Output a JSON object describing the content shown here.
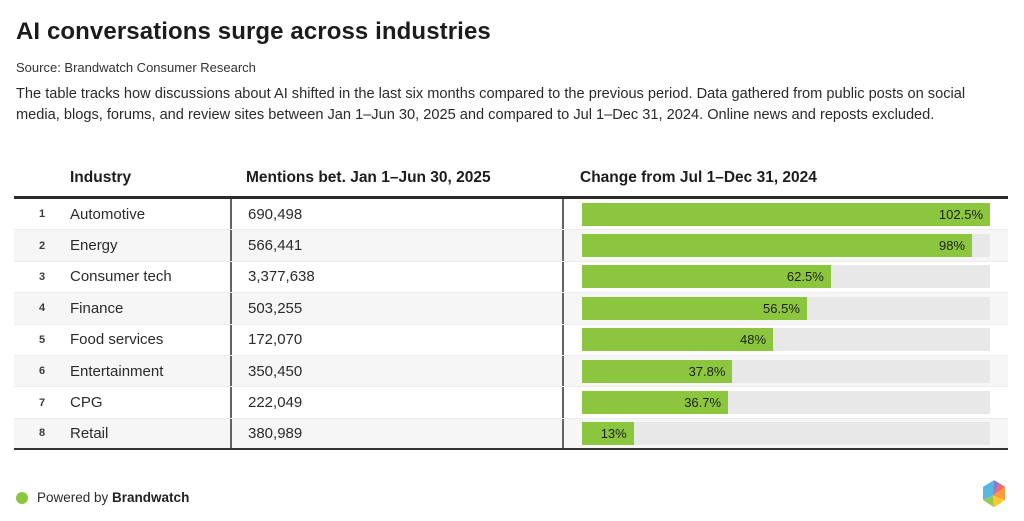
{
  "page": {
    "title": "AI conversations surge across industries",
    "source_line": "Source: Brandwatch Consumer Research",
    "description": "The table tracks how discussions about AI shifted in the last six months compared to the previous period. Data gathered from public posts on social media, blogs, forums, and review sites between Jan 1–Jun 30, 2025 and compared to Jul 1–Dec 31, 2024. Online news and reposts excluded."
  },
  "table": {
    "headers": {
      "industry": "Industry",
      "mentions": "Mentions bet. Jan 1–Jun 30, 2025",
      "change": "Change from Jul 1–Dec 31, 2024"
    },
    "rows": [
      {
        "rank": "1",
        "industry": "Automotive",
        "mentions": "690,498",
        "change_pct": 102.5,
        "change_label": "102.5%"
      },
      {
        "rank": "2",
        "industry": "Energy",
        "mentions": "566,441",
        "change_pct": 98,
        "change_label": "98%"
      },
      {
        "rank": "3",
        "industry": "Consumer tech",
        "mentions": "3,377,638",
        "change_pct": 62.5,
        "change_label": "62.5%"
      },
      {
        "rank": "4",
        "industry": "Finance",
        "mentions": "503,255",
        "change_pct": 56.5,
        "change_label": "56.5%"
      },
      {
        "rank": "5",
        "industry": "Food services",
        "mentions": "172,070",
        "change_pct": 48,
        "change_label": "48%"
      },
      {
        "rank": "6",
        "industry": "Entertainment",
        "mentions": "350,450",
        "change_pct": 37.8,
        "change_label": "37.8%"
      },
      {
        "rank": "7",
        "industry": "CPG",
        "mentions": "222,049",
        "change_pct": 36.7,
        "change_label": "36.7%"
      },
      {
        "rank": "8",
        "industry": "Retail",
        "mentions": "380,989",
        "change_pct": 13,
        "change_label": "13%"
      }
    ]
  },
  "chart_data": {
    "type": "bar",
    "title": "AI conversations surge across industries",
    "subtitle": "Source: Brandwatch Consumer Research",
    "categories": [
      "Automotive",
      "Energy",
      "Consumer tech",
      "Finance",
      "Food services",
      "Entertainment",
      "CPG",
      "Retail"
    ],
    "series": [
      {
        "name": "Mentions bet. Jan 1–Jun 30, 2025",
        "values": [
          690498,
          566441,
          3377638,
          503255,
          172070,
          350450,
          222049,
          380989
        ]
      },
      {
        "name": "Change from Jul 1–Dec 31, 2024 (%)",
        "values": [
          102.5,
          98,
          62.5,
          56.5,
          48,
          37.8,
          36.7,
          13
        ]
      }
    ],
    "orientation": "horizontal",
    "xlim": [
      0,
      102.5
    ],
    "grid": false,
    "legend_position": "none",
    "bar_color": "#8CC63F",
    "track_color": "#E8E8E8"
  },
  "footer": {
    "powered_by": "Powered by ",
    "brand": "Brandwatch",
    "dot_color": "#8CC63F"
  },
  "colors": {
    "accent_green": "#8CC63F",
    "bar_track": "#E8E8E8",
    "header_rule": "#2B2B2B",
    "row_alt": "#F6F6F6",
    "divider": "#636363"
  }
}
